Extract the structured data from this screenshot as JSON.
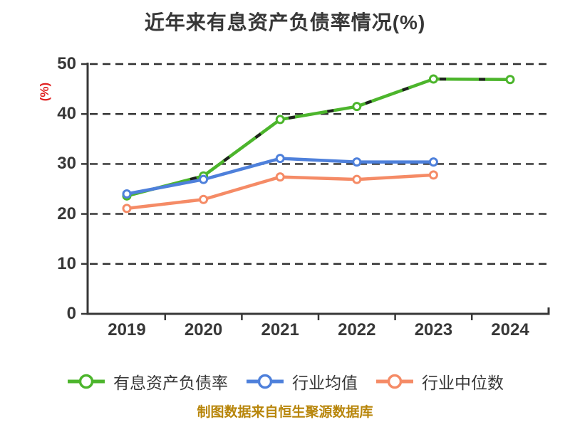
{
  "chart_data": {
    "type": "line",
    "title": "近年来有息资产负债率情况(%)",
    "ylabel": "(%)",
    "xlabel": "",
    "x": [
      "2019",
      "2020",
      "2021",
      "2022",
      "2023",
      "2024"
    ],
    "yticks": [
      0,
      10,
      20,
      30,
      40,
      50
    ],
    "ylim": [
      0,
      50
    ],
    "grid": "horizontal-dashed",
    "legend_position": "bottom-center",
    "series": [
      {
        "name": "有息资产负债率",
        "color": "#4CB52C",
        "overlay_dash": true,
        "values": [
          23.6,
          27.6,
          38.9,
          41.5,
          47.0,
          46.9
        ]
      },
      {
        "name": "行业均值",
        "color": "#4E80DB",
        "overlay_dash": false,
        "values": [
          24.0,
          26.9,
          31.1,
          30.4,
          30.4,
          null
        ]
      },
      {
        "name": "行业中位数",
        "color": "#F58B66",
        "overlay_dash": false,
        "values": [
          21.1,
          22.9,
          27.4,
          26.9,
          27.8,
          null
        ]
      }
    ]
  },
  "footer": {
    "text": "制图数据来自恒生聚源数据库"
  },
  "colors": {
    "text": "#373737",
    "axis": "#373737",
    "grid": "#2f2f2f",
    "ylabel_red": "#E02222",
    "footer_gold": "#B8860B",
    "marker_fill": "#ffffff",
    "line_overlay_dark": "#1f1f1f"
  }
}
